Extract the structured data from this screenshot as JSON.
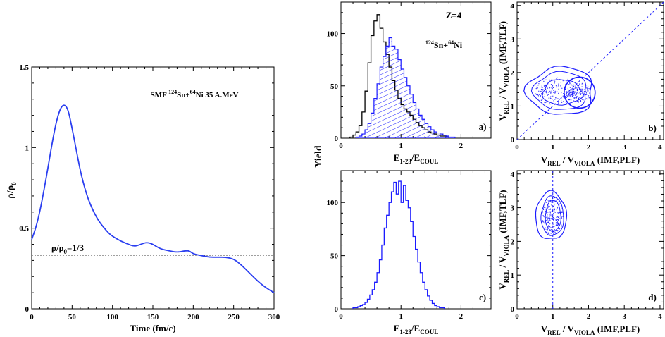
{
  "colors": {
    "density_curve": "#2b3ff0",
    "histogram_blue": "#1a1aff",
    "histogram_black": "#000000",
    "label_red": "#e8142b",
    "contour_blue": "#1a1aff"
  },
  "chart_data": [
    {
      "id": "density",
      "type": "line",
      "title": "SMF 124Sn+64Ni 35 A.MeV",
      "xlabel": "Time (fm/c)",
      "ylabel": "ρ/ρ0",
      "xlim": [
        0,
        300
      ],
      "ylim": [
        0,
        1.5
      ],
      "x_ticks": [
        "0",
        "50",
        "100",
        "150",
        "200",
        "250",
        "300"
      ],
      "y_ticks": [
        "0",
        "0.5",
        "1",
        "1.5"
      ],
      "annotation": "ρ/ρ0=1/3",
      "reference_line": 0.3333,
      "series": [
        {
          "x": [
            0,
            5,
            10,
            15,
            20,
            25,
            30,
            35,
            40,
            45,
            50,
            55,
            60,
            65,
            70,
            75,
            80,
            85,
            90,
            95,
            100,
            110,
            120,
            125,
            130,
            140,
            145,
            150,
            160,
            170,
            180,
            190,
            195,
            200,
            210,
            220,
            230,
            240,
            250,
            260,
            270,
            280,
            290,
            300
          ],
          "y": [
            0.43,
            0.5,
            0.6,
            0.73,
            0.87,
            1.02,
            1.15,
            1.24,
            1.27,
            1.24,
            1.12,
            0.99,
            0.86,
            0.76,
            0.68,
            0.62,
            0.57,
            0.53,
            0.5,
            0.47,
            0.45,
            0.42,
            0.4,
            0.39,
            0.39,
            0.41,
            0.41,
            0.4,
            0.37,
            0.36,
            0.35,
            0.36,
            0.36,
            0.34,
            0.33,
            0.32,
            0.32,
            0.32,
            0.31,
            0.27,
            0.22,
            0.17,
            0.13,
            0.1
          ]
        }
      ]
    },
    {
      "id": "panel-a",
      "type": "bar",
      "xlabel": "E1-23/ECOUL",
      "x_ticks": [
        "0",
        "1",
        "2"
      ],
      "y_ticks": [
        "0",
        "50",
        "100"
      ],
      "xlim": [
        0,
        2.5
      ],
      "ylim": [
        0,
        130
      ],
      "label": "Z=4",
      "reaction": "124Sn+64Ni",
      "panel_tag": "a)",
      "bin_width": 0.05,
      "series": [
        {
          "style": "black-outline",
          "bin_start": 0.15,
          "values": [
            1,
            3,
            6,
            12,
            25,
            45,
            72,
            98,
            112,
            118,
            105,
            92,
            80,
            68,
            55,
            46,
            38,
            32,
            28,
            25,
            22,
            18,
            15,
            12,
            10,
            8,
            6,
            5,
            4,
            3,
            2,
            2,
            1
          ]
        },
        {
          "style": "blue-hatched",
          "bin_start": 0.25,
          "values": [
            1,
            2,
            4,
            8,
            14,
            24,
            38,
            52,
            68,
            78,
            88,
            96,
            88,
            85,
            75,
            66,
            58,
            50,
            42,
            34,
            28,
            22,
            18,
            14,
            11,
            8,
            6,
            5,
            4,
            3,
            2,
            1,
            1
          ]
        }
      ]
    },
    {
      "id": "panel-b",
      "type": "scatter",
      "xlabel": "VREL / VVIOLA (IMF,PLF)",
      "ylabel": "VREL / VVIOLA (IMF,TLF)",
      "x_ticks": [
        "0",
        "1",
        "2",
        "3",
        "4"
      ],
      "y_ticks": [
        "0",
        "1",
        "2",
        "3",
        "4"
      ],
      "xlim": [
        0,
        4.1
      ],
      "ylim": [
        0,
        4.1
      ],
      "panel_tag": "b)",
      "reference_line": "diagonal"
    },
    {
      "id": "panel-c",
      "type": "bar",
      "xlabel": "E1-23/ECOUL",
      "x_ticks": [
        "0",
        "1",
        "2"
      ],
      "y_ticks": [
        "0",
        "50",
        "100"
      ],
      "xlim": [
        0,
        2.5
      ],
      "ylim": [
        0,
        130
      ],
      "panel_tag": "c)",
      "bin_width": 0.04,
      "series": [
        {
          "style": "blue-outline",
          "bin_start": 0.2,
          "values": [
            1,
            1,
            2,
            3,
            4,
            6,
            9,
            13,
            18,
            25,
            34,
            46,
            60,
            76,
            88,
            100,
            110,
            119,
            108,
            120,
            100,
            116,
            102,
            95,
            82,
            68,
            56,
            44,
            34,
            25,
            18,
            12,
            8,
            5,
            3,
            2,
            1,
            1
          ]
        }
      ]
    },
    {
      "id": "panel-d",
      "type": "scatter",
      "xlabel": "VREL / VVIOLA (IMF,PLF)",
      "ylabel": "VREL / VVIOLA (IMF,TLF)",
      "x_ticks": [
        "0",
        "1",
        "2",
        "3",
        "4"
      ],
      "y_ticks": [
        "0",
        "1",
        "2",
        "3",
        "4"
      ],
      "xlim": [
        0,
        4.1
      ],
      "ylim": [
        0,
        4.1
      ],
      "panel_tag": "d)",
      "reference_line": 1
    }
  ],
  "shared": {
    "yield_label": "Yield"
  }
}
